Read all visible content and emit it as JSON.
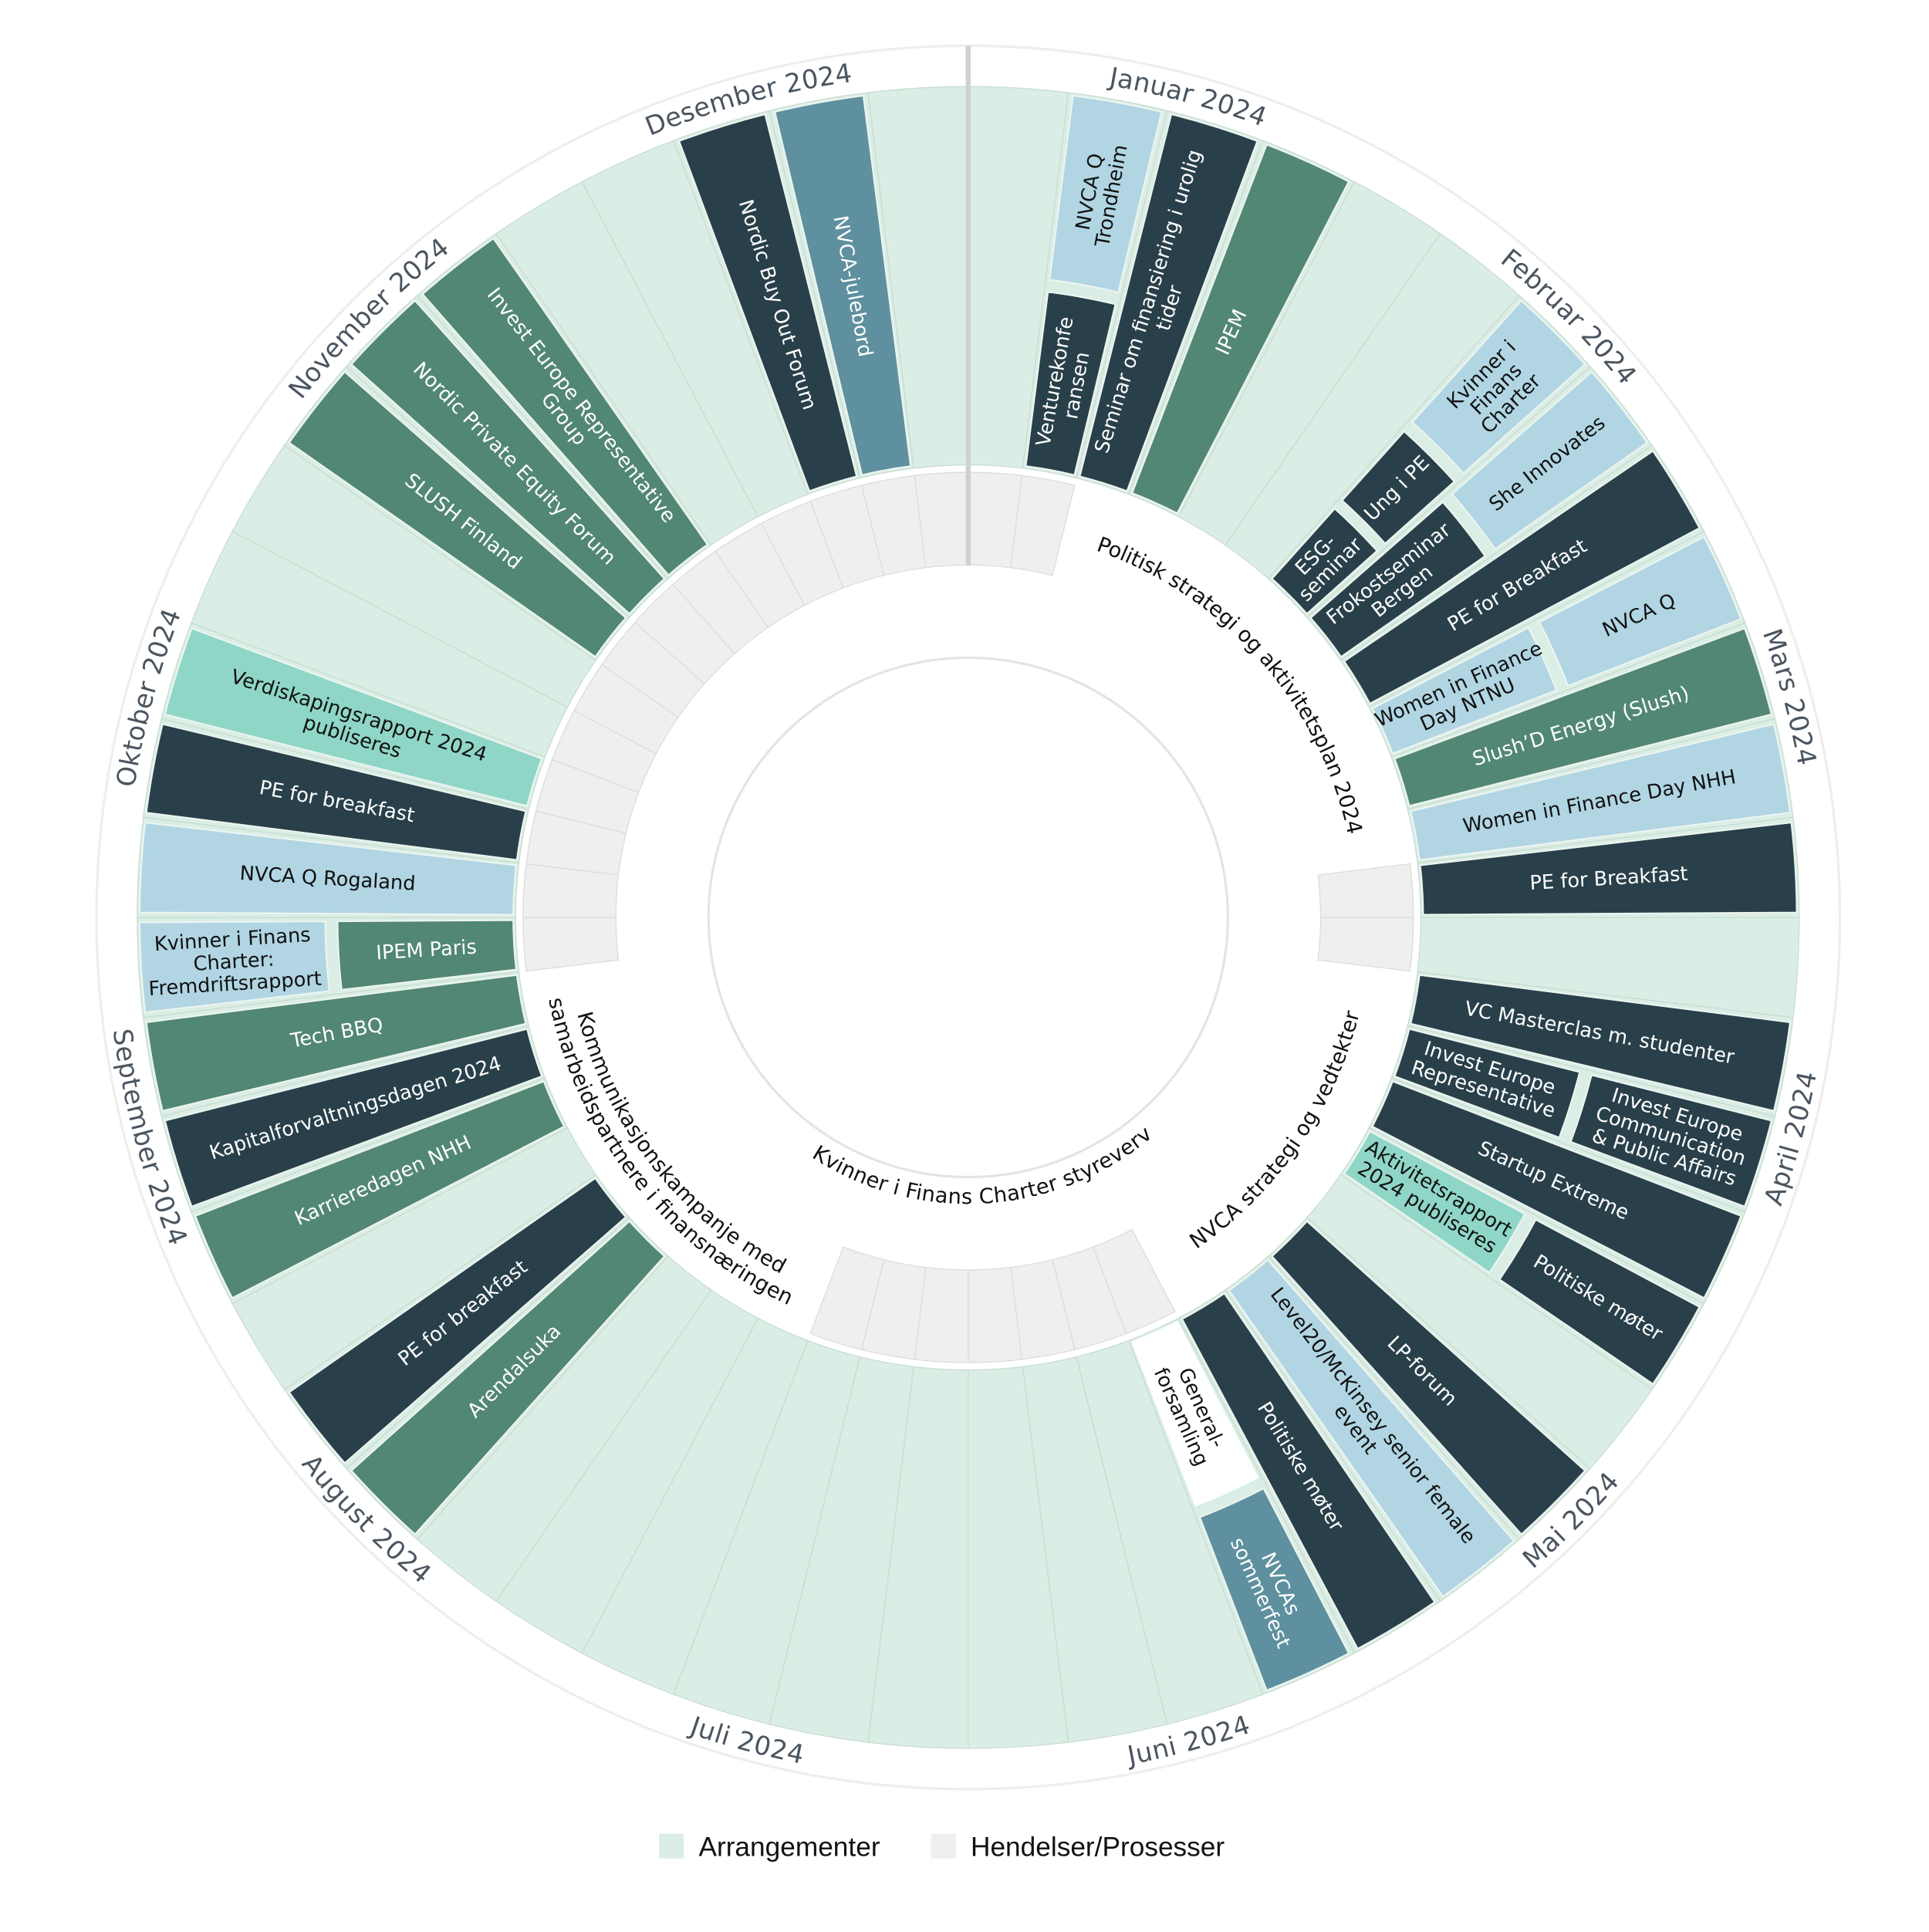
{
  "months": [
    "Januar 2024",
    "Februar 2024",
    "Mars 2024",
    "April 2024",
    "Mai 2024",
    "Juni 2024",
    "Juli 2024",
    "August 2024",
    "September 2024",
    "Oktober 2024",
    "November 2024",
    "Desember 2024"
  ],
  "palette": {
    "dark": "#29404a",
    "green": "#528773",
    "lightblue": "#b1d5e3",
    "teal": "#5e909f",
    "mint": "#8fd6c7",
    "white": "#ffffff"
  },
  "events": [
    {
      "week": 2,
      "level": "outer",
      "category": "lightblue",
      "label": [
        "NVCA Q",
        "Trondheim"
      ]
    },
    {
      "week": 2,
      "level": "inner",
      "category": "dark",
      "label": [
        "Venturekonfe",
        "ransen"
      ]
    },
    {
      "week": 3,
      "level": "full",
      "category": "dark",
      "label": [
        "Seminar om finansiering i urolig",
        "tider"
      ]
    },
    {
      "week": 4,
      "level": "full",
      "category": "green",
      "label": [
        "IPEM"
      ]
    },
    {
      "week": 7,
      "level": "outer3",
      "category": "lightblue",
      "label": [
        "Kvinner i",
        "Finans",
        "Charter"
      ]
    },
    {
      "week": 7,
      "level": "mid3",
      "category": "dark",
      "label": [
        "Ung i PE"
      ]
    },
    {
      "week": 7,
      "level": "inner3",
      "category": "dark",
      "label": [
        "ESG-",
        "seminar"
      ]
    },
    {
      "week": 8,
      "level": "outer",
      "category": "lightblue",
      "label": [
        "She Innovates"
      ]
    },
    {
      "week": 8,
      "level": "inner",
      "category": "dark",
      "label": [
        "Frokostseminar",
        "Bergen"
      ]
    },
    {
      "week": 9,
      "level": "full",
      "category": "dark",
      "label": [
        "PE for Breakfast"
      ]
    },
    {
      "week": 10,
      "level": "outer",
      "category": "lightblue",
      "label": [
        "NVCA Q"
      ]
    },
    {
      "week": 10,
      "level": "inner",
      "category": "lightblue",
      "label": [
        "Women in Finance",
        "Day NTNU"
      ]
    },
    {
      "week": 11,
      "level": "full",
      "category": "green",
      "label": [
        "Slush’D Energy (Slush)"
      ]
    },
    {
      "week": 12,
      "level": "full",
      "category": "lightblue",
      "label": [
        "Women in Finance Day NHH"
      ]
    },
    {
      "week": 13,
      "level": "full",
      "category": "dark",
      "label": [
        "PE for Breakfast"
      ]
    },
    {
      "week": 15,
      "level": "full",
      "category": "dark",
      "label": [
        "VC Masterclas m. studenter"
      ]
    },
    {
      "week": 16,
      "level": "inner",
      "category": "dark",
      "label": [
        "Invest Europe",
        "Representative"
      ]
    },
    {
      "week": 16,
      "level": "outer",
      "category": "dark",
      "label": [
        "Invest Europe",
        "Communication",
        "& Public Affairs"
      ]
    },
    {
      "week": 17,
      "level": "full",
      "category": "dark",
      "label": [
        "Startup Extreme"
      ]
    },
    {
      "week": 18,
      "level": "inner",
      "category": "mint",
      "label": [
        "Aktivitetsrapport",
        "2024 publiseres"
      ]
    },
    {
      "week": 18,
      "level": "outer",
      "category": "dark",
      "label": [
        "Politiske møter"
      ]
    },
    {
      "week": 20,
      "level": "full",
      "category": "dark",
      "label": [
        "LP-forum"
      ]
    },
    {
      "week": 21,
      "level": "full",
      "category": "lightblue",
      "label": [
        "Level20/McKinsey senior female",
        "event"
      ]
    },
    {
      "week": 22,
      "level": "full",
      "category": "dark",
      "label": [
        "Politiske møter"
      ]
    },
    {
      "week": 23,
      "level": "inner",
      "category": "white",
      "label": [
        "General-",
        "forsamling"
      ]
    },
    {
      "week": 23,
      "level": "outer",
      "category": "teal",
      "label": [
        "NVCAs",
        "sommerfest"
      ]
    },
    {
      "week": 33,
      "level": "full",
      "category": "green",
      "label": [
        "Arendalsuka"
      ]
    },
    {
      "week": 34,
      "level": "full",
      "category": "dark",
      "label": [
        "PE for breakfast"
      ]
    },
    {
      "week": 36,
      "level": "full",
      "category": "green",
      "label": [
        "Karrieredagen NHH"
      ]
    },
    {
      "week": 37,
      "level": "full",
      "category": "dark",
      "label": [
        "Kapitalforvaltningsdagen 2024"
      ]
    },
    {
      "week": 38,
      "level": "full",
      "category": "green",
      "label": [
        "Tech BBQ"
      ]
    },
    {
      "week": 39,
      "level": "outer",
      "category": "lightblue",
      "label": [
        "Kvinner i Finans",
        "Charter:",
        "Fremdriftsrapport"
      ]
    },
    {
      "week": 39,
      "level": "inner",
      "category": "green",
      "label": [
        "IPEM Paris"
      ]
    },
    {
      "week": 40,
      "level": "full",
      "category": "lightblue",
      "label": [
        "NVCA Q Rogaland"
      ]
    },
    {
      "week": 41,
      "level": "full",
      "category": "dark",
      "label": [
        "PE for breakfast"
      ]
    },
    {
      "week": 42,
      "level": "full",
      "category": "mint",
      "label": [
        "Verdiskapingsrapport 2024",
        "publiseres"
      ]
    },
    {
      "week": 45,
      "level": "full",
      "category": "green",
      "label": [
        "SLUSH Finland"
      ]
    },
    {
      "week": 46,
      "level": "full",
      "category": "green",
      "label": [
        "Nordic Private Equity Forum"
      ]
    },
    {
      "week": 47,
      "level": "full",
      "category": "green",
      "label": [
        "Invest Europe Representative",
        "Group"
      ]
    },
    {
      "week": 50,
      "level": "full",
      "category": "dark",
      "label": [
        "Nordic Buy Out Forum"
      ]
    },
    {
      "week": 51,
      "level": "full",
      "category": "teal",
      "label": [
        "NVCA-julebord"
      ]
    }
  ],
  "processes": [
    {
      "from_week": 3,
      "to_week": 12,
      "ring": "outer",
      "label": [
        "Politisk strategi og aktivitetsplan 2024"
      ]
    },
    {
      "from_week": 15,
      "to_week": 22,
      "ring": "outer",
      "label": [
        "NVCA strategi og vedtekter"
      ]
    },
    {
      "from_week": 21,
      "to_week": 31,
      "ring": "inner",
      "label": [
        "Kvinner i Finans Charter styreverv"
      ]
    },
    {
      "from_week": 30,
      "to_week": 38,
      "ring": "outer",
      "label": [
        "Kommunikasjonskampanje med",
        "samarbeidspartnere i finansnæringen"
      ]
    }
  ],
  "legend": [
    {
      "label": "Arrangementer",
      "color": "#dbeee5"
    },
    {
      "label": "Hendelser/Prosesser",
      "color": "#efefef"
    }
  ]
}
